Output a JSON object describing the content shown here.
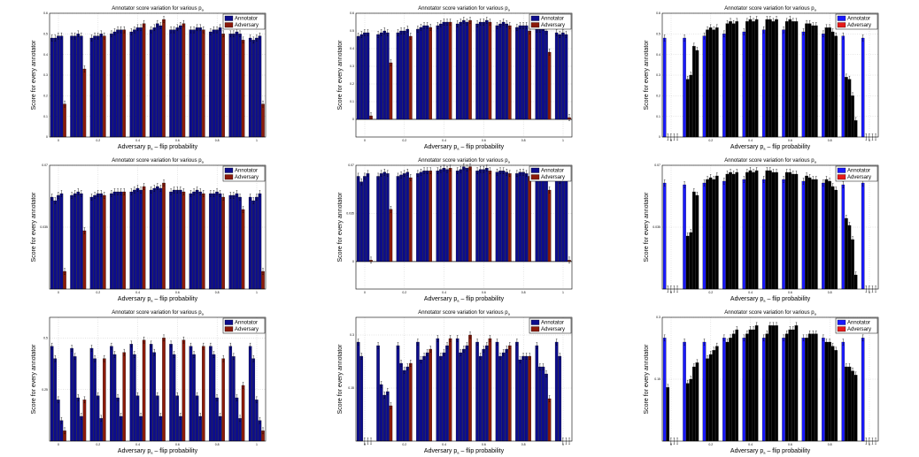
{
  "figure": {
    "panel_title": "Annotator score variation for various p",
    "title_subscript": "a",
    "xlabel_prefix": "Adversary p",
    "xlabel_subscript": "a",
    "xlabel_suffix": " – flip probability",
    "ylabel": "Score for every annotator",
    "legend": [
      "Annotator",
      "Adversary"
    ],
    "colors": {
      "annotator": "#0d0d8c",
      "annotator_bright": "#1a1aff",
      "adversary": "#8b1a0a",
      "black": "#000000"
    }
  },
  "chart_data": [
    {
      "type": "bar",
      "style": "navy-red",
      "x_ticks": [
        "0",
        "0.2",
        "0.4",
        "0.6",
        "0.8",
        "1"
      ],
      "ylim": [
        0,
        0.6
      ],
      "y_ticks": [
        "0",
        "0.1",
        "0.2",
        "0.3",
        "0.4",
        "0.5",
        "0.6"
      ],
      "groups": [
        {
          "x": 0.0,
          "values": [
            0.48,
            0.48,
            0.49,
            0.49,
            0.16
          ]
        },
        {
          "x": 0.1,
          "values": [
            0.49,
            0.49,
            0.5,
            0.49,
            0.33
          ]
        },
        {
          "x": 0.2,
          "values": [
            0.48,
            0.49,
            0.49,
            0.5,
            0.49
          ]
        },
        {
          "x": 0.3,
          "values": [
            0.5,
            0.51,
            0.52,
            0.52,
            0.52
          ]
        },
        {
          "x": 0.4,
          "values": [
            0.51,
            0.52,
            0.53,
            0.53,
            0.55
          ]
        },
        {
          "x": 0.5,
          "values": [
            0.52,
            0.53,
            0.55,
            0.54,
            0.57
          ]
        },
        {
          "x": 0.6,
          "values": [
            0.52,
            0.52,
            0.53,
            0.54,
            0.55
          ]
        },
        {
          "x": 0.7,
          "values": [
            0.52,
            0.52,
            0.53,
            0.53,
            0.52
          ]
        },
        {
          "x": 0.8,
          "values": [
            0.51,
            0.52,
            0.52,
            0.53,
            0.5
          ]
        },
        {
          "x": 0.9,
          "values": [
            0.5,
            0.5,
            0.51,
            0.5,
            0.47
          ]
        },
        {
          "x": 1.0,
          "values": [
            0.48,
            0.47,
            0.48,
            0.49,
            0.16
          ]
        }
      ]
    },
    {
      "type": "bar",
      "style": "navy-red",
      "x_ticks": [
        "0",
        "0.2",
        "0.4",
        "0.6",
        "0.8",
        "1"
      ],
      "ylim": [
        -0.1,
        0.6
      ],
      "y_ticks": [
        "0",
        "0.1",
        "0.2",
        "0.3",
        "0.4",
        "0.5",
        "0.6"
      ],
      "groups": [
        {
          "x": 0.0,
          "values": [
            0.47,
            0.48,
            0.49,
            0.49,
            0.02
          ]
        },
        {
          "x": 0.1,
          "values": [
            0.48,
            0.49,
            0.5,
            0.49,
            0.32
          ]
        },
        {
          "x": 0.2,
          "values": [
            0.49,
            0.5,
            0.5,
            0.51,
            0.47
          ]
        },
        {
          "x": 0.3,
          "values": [
            0.51,
            0.52,
            0.53,
            0.53,
            0.52
          ]
        },
        {
          "x": 0.4,
          "values": [
            0.53,
            0.54,
            0.55,
            0.55,
            0.55
          ]
        },
        {
          "x": 0.5,
          "values": [
            0.54,
            0.55,
            0.56,
            0.55,
            0.56
          ]
        },
        {
          "x": 0.6,
          "values": [
            0.54,
            0.55,
            0.55,
            0.56,
            0.55
          ]
        },
        {
          "x": 0.7,
          "values": [
            0.53,
            0.54,
            0.55,
            0.54,
            0.53
          ]
        },
        {
          "x": 0.8,
          "values": [
            0.52,
            0.53,
            0.53,
            0.53,
            0.5
          ]
        },
        {
          "x": 0.9,
          "values": [
            0.51,
            0.51,
            0.52,
            0.5,
            0.38
          ]
        },
        {
          "x": 1.0,
          "values": [
            0.49,
            0.48,
            0.49,
            0.48,
            0.01
          ]
        }
      ]
    },
    {
      "type": "bar",
      "style": "blue-black",
      "x_ticks": [
        "0",
        "0.2",
        "0.4",
        "0.6",
        "0.8",
        "1"
      ],
      "ylim": [
        0,
        0.6
      ],
      "y_ticks": [
        "0",
        "0.1",
        "0.2",
        "0.3",
        "0.4",
        "0.5",
        "0.6"
      ],
      "groups": [
        {
          "x": 0.0,
          "values": [
            0.48,
            0.0,
            0.0,
            0.0,
            0.0
          ]
        },
        {
          "x": 0.1,
          "values": [
            0.48,
            0.28,
            0.3,
            0.44,
            0.42
          ]
        },
        {
          "x": 0.2,
          "values": [
            0.49,
            0.52,
            0.53,
            0.52,
            0.53
          ]
        },
        {
          "x": 0.3,
          "values": [
            0.5,
            0.55,
            0.56,
            0.55,
            0.56
          ]
        },
        {
          "x": 0.4,
          "values": [
            0.51,
            0.56,
            0.57,
            0.56,
            0.57
          ]
        },
        {
          "x": 0.5,
          "values": [
            0.52,
            0.57,
            0.57,
            0.56,
            0.57
          ]
        },
        {
          "x": 0.6,
          "values": [
            0.52,
            0.56,
            0.57,
            0.56,
            0.56
          ]
        },
        {
          "x": 0.7,
          "values": [
            0.51,
            0.55,
            0.55,
            0.54,
            0.54
          ]
        },
        {
          "x": 0.8,
          "values": [
            0.5,
            0.53,
            0.53,
            0.51,
            0.49
          ]
        },
        {
          "x": 0.9,
          "values": [
            0.49,
            0.29,
            0.28,
            0.2,
            0.08
          ]
        },
        {
          "x": 1.0,
          "values": [
            0.48,
            0.0,
            0.0,
            0.0,
            0.0
          ]
        }
      ]
    },
    {
      "type": "bar",
      "style": "navy-red",
      "x_ticks": [
        "0",
        "0.2",
        "0.4",
        "0.6",
        "0.8",
        "1"
      ],
      "ylim": [
        0,
        0.07
      ],
      "y_ticks": [
        "0.035",
        "0.07"
      ],
      "groups": [
        {
          "x": 0.0,
          "values": [
            0.052,
            0.05,
            0.053,
            0.054,
            0.01
          ]
        },
        {
          "x": 0.1,
          "values": [
            0.053,
            0.054,
            0.055,
            0.054,
            0.033
          ]
        },
        {
          "x": 0.2,
          "values": [
            0.052,
            0.053,
            0.054,
            0.054,
            0.053
          ]
        },
        {
          "x": 0.3,
          "values": [
            0.054,
            0.055,
            0.055,
            0.055,
            0.055
          ]
        },
        {
          "x": 0.4,
          "values": [
            0.055,
            0.056,
            0.057,
            0.056,
            0.058
          ]
        },
        {
          "x": 0.5,
          "values": [
            0.056,
            0.057,
            0.058,
            0.057,
            0.06
          ]
        },
        {
          "x": 0.6,
          "values": [
            0.055,
            0.056,
            0.056,
            0.056,
            0.055
          ]
        },
        {
          "x": 0.7,
          "values": [
            0.054,
            0.055,
            0.056,
            0.055,
            0.054
          ]
        },
        {
          "x": 0.8,
          "values": [
            0.054,
            0.054,
            0.055,
            0.054,
            0.052
          ]
        },
        {
          "x": 0.9,
          "values": [
            0.053,
            0.053,
            0.054,
            0.052,
            0.045
          ]
        },
        {
          "x": 1.0,
          "values": [
            0.052,
            0.05,
            0.052,
            0.054,
            0.01
          ]
        }
      ]
    },
    {
      "type": "bar",
      "style": "navy-red",
      "x_ticks": [
        "0",
        "0.2",
        "0.4",
        "0.6",
        "0.8",
        "1"
      ],
      "ylim": [
        -0.02,
        0.07
      ],
      "y_ticks": [
        "0",
        "0.035",
        "0.07"
      ],
      "groups": [
        {
          "x": 0.0,
          "values": [
            0.062,
            0.058,
            0.062,
            0.064,
            0.001
          ]
        },
        {
          "x": 0.1,
          "values": [
            0.062,
            0.064,
            0.065,
            0.064,
            0.038
          ]
        },
        {
          "x": 0.2,
          "values": [
            0.062,
            0.063,
            0.064,
            0.065,
            0.061
          ]
        },
        {
          "x": 0.3,
          "values": [
            0.064,
            0.065,
            0.066,
            0.066,
            0.066
          ]
        },
        {
          "x": 0.4,
          "values": [
            0.066,
            0.067,
            0.068,
            0.067,
            0.068
          ]
        },
        {
          "x": 0.5,
          "values": [
            0.066,
            0.067,
            0.069,
            0.068,
            0.069
          ]
        },
        {
          "x": 0.6,
          "values": [
            0.066,
            0.067,
            0.067,
            0.068,
            0.066
          ]
        },
        {
          "x": 0.7,
          "values": [
            0.065,
            0.066,
            0.066,
            0.065,
            0.064
          ]
        },
        {
          "x": 0.8,
          "values": [
            0.064,
            0.065,
            0.065,
            0.064,
            0.062
          ]
        },
        {
          "x": 0.9,
          "values": [
            0.063,
            0.063,
            0.064,
            0.062,
            0.052
          ]
        },
        {
          "x": 1.0,
          "values": [
            0.062,
            0.059,
            0.062,
            0.061,
            0.001
          ]
        }
      ]
    },
    {
      "type": "bar",
      "style": "blue-black",
      "x_ticks": [
        "0",
        "0.2",
        "0.4",
        "0.6",
        "0.8",
        "1"
      ],
      "ylim": [
        0,
        0.07
      ],
      "y_ticks": [
        "0.035",
        "0.07"
      ],
      "groups": [
        {
          "x": 0.0,
          "values": [
            0.06,
            0.0,
            0.0,
            0.0,
            0.0
          ]
        },
        {
          "x": 0.1,
          "values": [
            0.059,
            0.03,
            0.032,
            0.055,
            0.053
          ]
        },
        {
          "x": 0.2,
          "values": [
            0.06,
            0.062,
            0.063,
            0.062,
            0.064
          ]
        },
        {
          "x": 0.3,
          "values": [
            0.061,
            0.065,
            0.066,
            0.065,
            0.066
          ]
        },
        {
          "x": 0.4,
          "values": [
            0.062,
            0.066,
            0.067,
            0.066,
            0.067
          ]
        },
        {
          "x": 0.5,
          "values": [
            0.062,
            0.067,
            0.067,
            0.066,
            0.066
          ]
        },
        {
          "x": 0.6,
          "values": [
            0.062,
            0.066,
            0.066,
            0.065,
            0.065
          ]
        },
        {
          "x": 0.7,
          "values": [
            0.061,
            0.064,
            0.063,
            0.062,
            0.062
          ]
        },
        {
          "x": 0.8,
          "values": [
            0.06,
            0.062,
            0.061,
            0.058,
            0.056
          ]
        },
        {
          "x": 0.9,
          "values": [
            0.059,
            0.04,
            0.036,
            0.028,
            0.008
          ]
        },
        {
          "x": 1.0,
          "values": [
            0.06,
            0.0,
            0.0,
            0.0,
            0.0
          ]
        }
      ]
    },
    {
      "type": "bar",
      "style": "navy-red",
      "x_ticks": [
        "0",
        "0.2",
        "0.4",
        "0.6",
        "0.8",
        "1"
      ],
      "ylim": [
        0,
        0.6
      ],
      "y_ticks": [
        "0.25",
        "0.5"
      ],
      "groups": [
        {
          "x": 0.0,
          "values": [
            0.46,
            0.4,
            0.2,
            0.1,
            0.05
          ]
        },
        {
          "x": 0.1,
          "values": [
            0.45,
            0.41,
            0.21,
            0.12,
            0.2
          ]
        },
        {
          "x": 0.2,
          "values": [
            0.45,
            0.4,
            0.22,
            0.11,
            0.4
          ]
        },
        {
          "x": 0.3,
          "values": [
            0.46,
            0.42,
            0.21,
            0.12,
            0.43
          ]
        },
        {
          "x": 0.4,
          "values": [
            0.47,
            0.42,
            0.22,
            0.12,
            0.49
          ]
        },
        {
          "x": 0.5,
          "values": [
            0.47,
            0.43,
            0.22,
            0.12,
            0.5
          ]
        },
        {
          "x": 0.6,
          "values": [
            0.47,
            0.42,
            0.22,
            0.12,
            0.49
          ]
        },
        {
          "x": 0.7,
          "values": [
            0.46,
            0.42,
            0.22,
            0.12,
            0.46
          ]
        },
        {
          "x": 0.8,
          "values": [
            0.46,
            0.42,
            0.21,
            0.12,
            0.4
          ]
        },
        {
          "x": 0.9,
          "values": [
            0.46,
            0.41,
            0.21,
            0.11,
            0.27
          ]
        },
        {
          "x": 1.0,
          "values": [
            0.46,
            0.4,
            0.2,
            0.1,
            0.05
          ]
        }
      ]
    },
    {
      "type": "bar",
      "style": "navy-red",
      "x_ticks": [
        "0",
        "0.2",
        "0.4",
        "0.6",
        "0.8",
        "1"
      ],
      "ylim": [
        0,
        0.35
      ],
      "y_ticks": [
        "0.15",
        "0.3"
      ],
      "groups": [
        {
          "x": 0.0,
          "values": [
            0.28,
            0.24,
            0.0,
            0.0,
            0.0
          ]
        },
        {
          "x": 0.1,
          "values": [
            0.27,
            0.16,
            0.13,
            0.14,
            0.1
          ]
        },
        {
          "x": 0.2,
          "values": [
            0.27,
            0.22,
            0.2,
            0.21,
            0.22
          ]
        },
        {
          "x": 0.3,
          "values": [
            0.28,
            0.23,
            0.24,
            0.25,
            0.26
          ]
        },
        {
          "x": 0.4,
          "values": [
            0.29,
            0.24,
            0.25,
            0.27,
            0.29
          ]
        },
        {
          "x": 0.5,
          "values": [
            0.29,
            0.25,
            0.26,
            0.27,
            0.3
          ]
        },
        {
          "x": 0.6,
          "values": [
            0.28,
            0.24,
            0.26,
            0.27,
            0.29
          ]
        },
        {
          "x": 0.7,
          "values": [
            0.28,
            0.24,
            0.25,
            0.26,
            0.27
          ]
        },
        {
          "x": 0.8,
          "values": [
            0.28,
            0.23,
            0.24,
            0.24,
            0.24
          ]
        },
        {
          "x": 0.9,
          "values": [
            0.27,
            0.21,
            0.21,
            0.19,
            0.12
          ]
        },
        {
          "x": 1.0,
          "values": [
            0.28,
            0.24,
            0.0,
            0.0,
            0.0
          ]
        }
      ]
    },
    {
      "type": "bar",
      "style": "blue-black",
      "x_ticks": [
        "0",
        "0.2",
        "0.4",
        "0.6",
        "0.8",
        "1"
      ],
      "ylim": [
        0,
        0.3
      ],
      "y_ticks": [
        "0.15",
        "0.3"
      ],
      "groups": [
        {
          "x": 0.0,
          "values": [
            0.25,
            0.13,
            0.0,
            0.0,
            0.0
          ]
        },
        {
          "x": 0.1,
          "values": [
            0.24,
            0.14,
            0.15,
            0.18,
            0.19
          ]
        },
        {
          "x": 0.2,
          "values": [
            0.24,
            0.2,
            0.21,
            0.22,
            0.23
          ]
        },
        {
          "x": 0.3,
          "values": [
            0.25,
            0.24,
            0.25,
            0.26,
            0.27
          ]
        },
        {
          "x": 0.4,
          "values": [
            0.25,
            0.26,
            0.27,
            0.27,
            0.28
          ]
        },
        {
          "x": 0.5,
          "values": [
            0.25,
            0.26,
            0.28,
            0.28,
            0.28
          ]
        },
        {
          "x": 0.6,
          "values": [
            0.25,
            0.26,
            0.27,
            0.27,
            0.28
          ]
        },
        {
          "x": 0.7,
          "values": [
            0.25,
            0.25,
            0.26,
            0.26,
            0.26
          ]
        },
        {
          "x": 0.8,
          "values": [
            0.25,
            0.24,
            0.24,
            0.23,
            0.22
          ]
        },
        {
          "x": 0.9,
          "values": [
            0.24,
            0.18,
            0.18,
            0.17,
            0.16
          ]
        },
        {
          "x": 1.0,
          "values": [
            0.25,
            0.0,
            0.0,
            0.0,
            0.0
          ]
        }
      ]
    }
  ]
}
